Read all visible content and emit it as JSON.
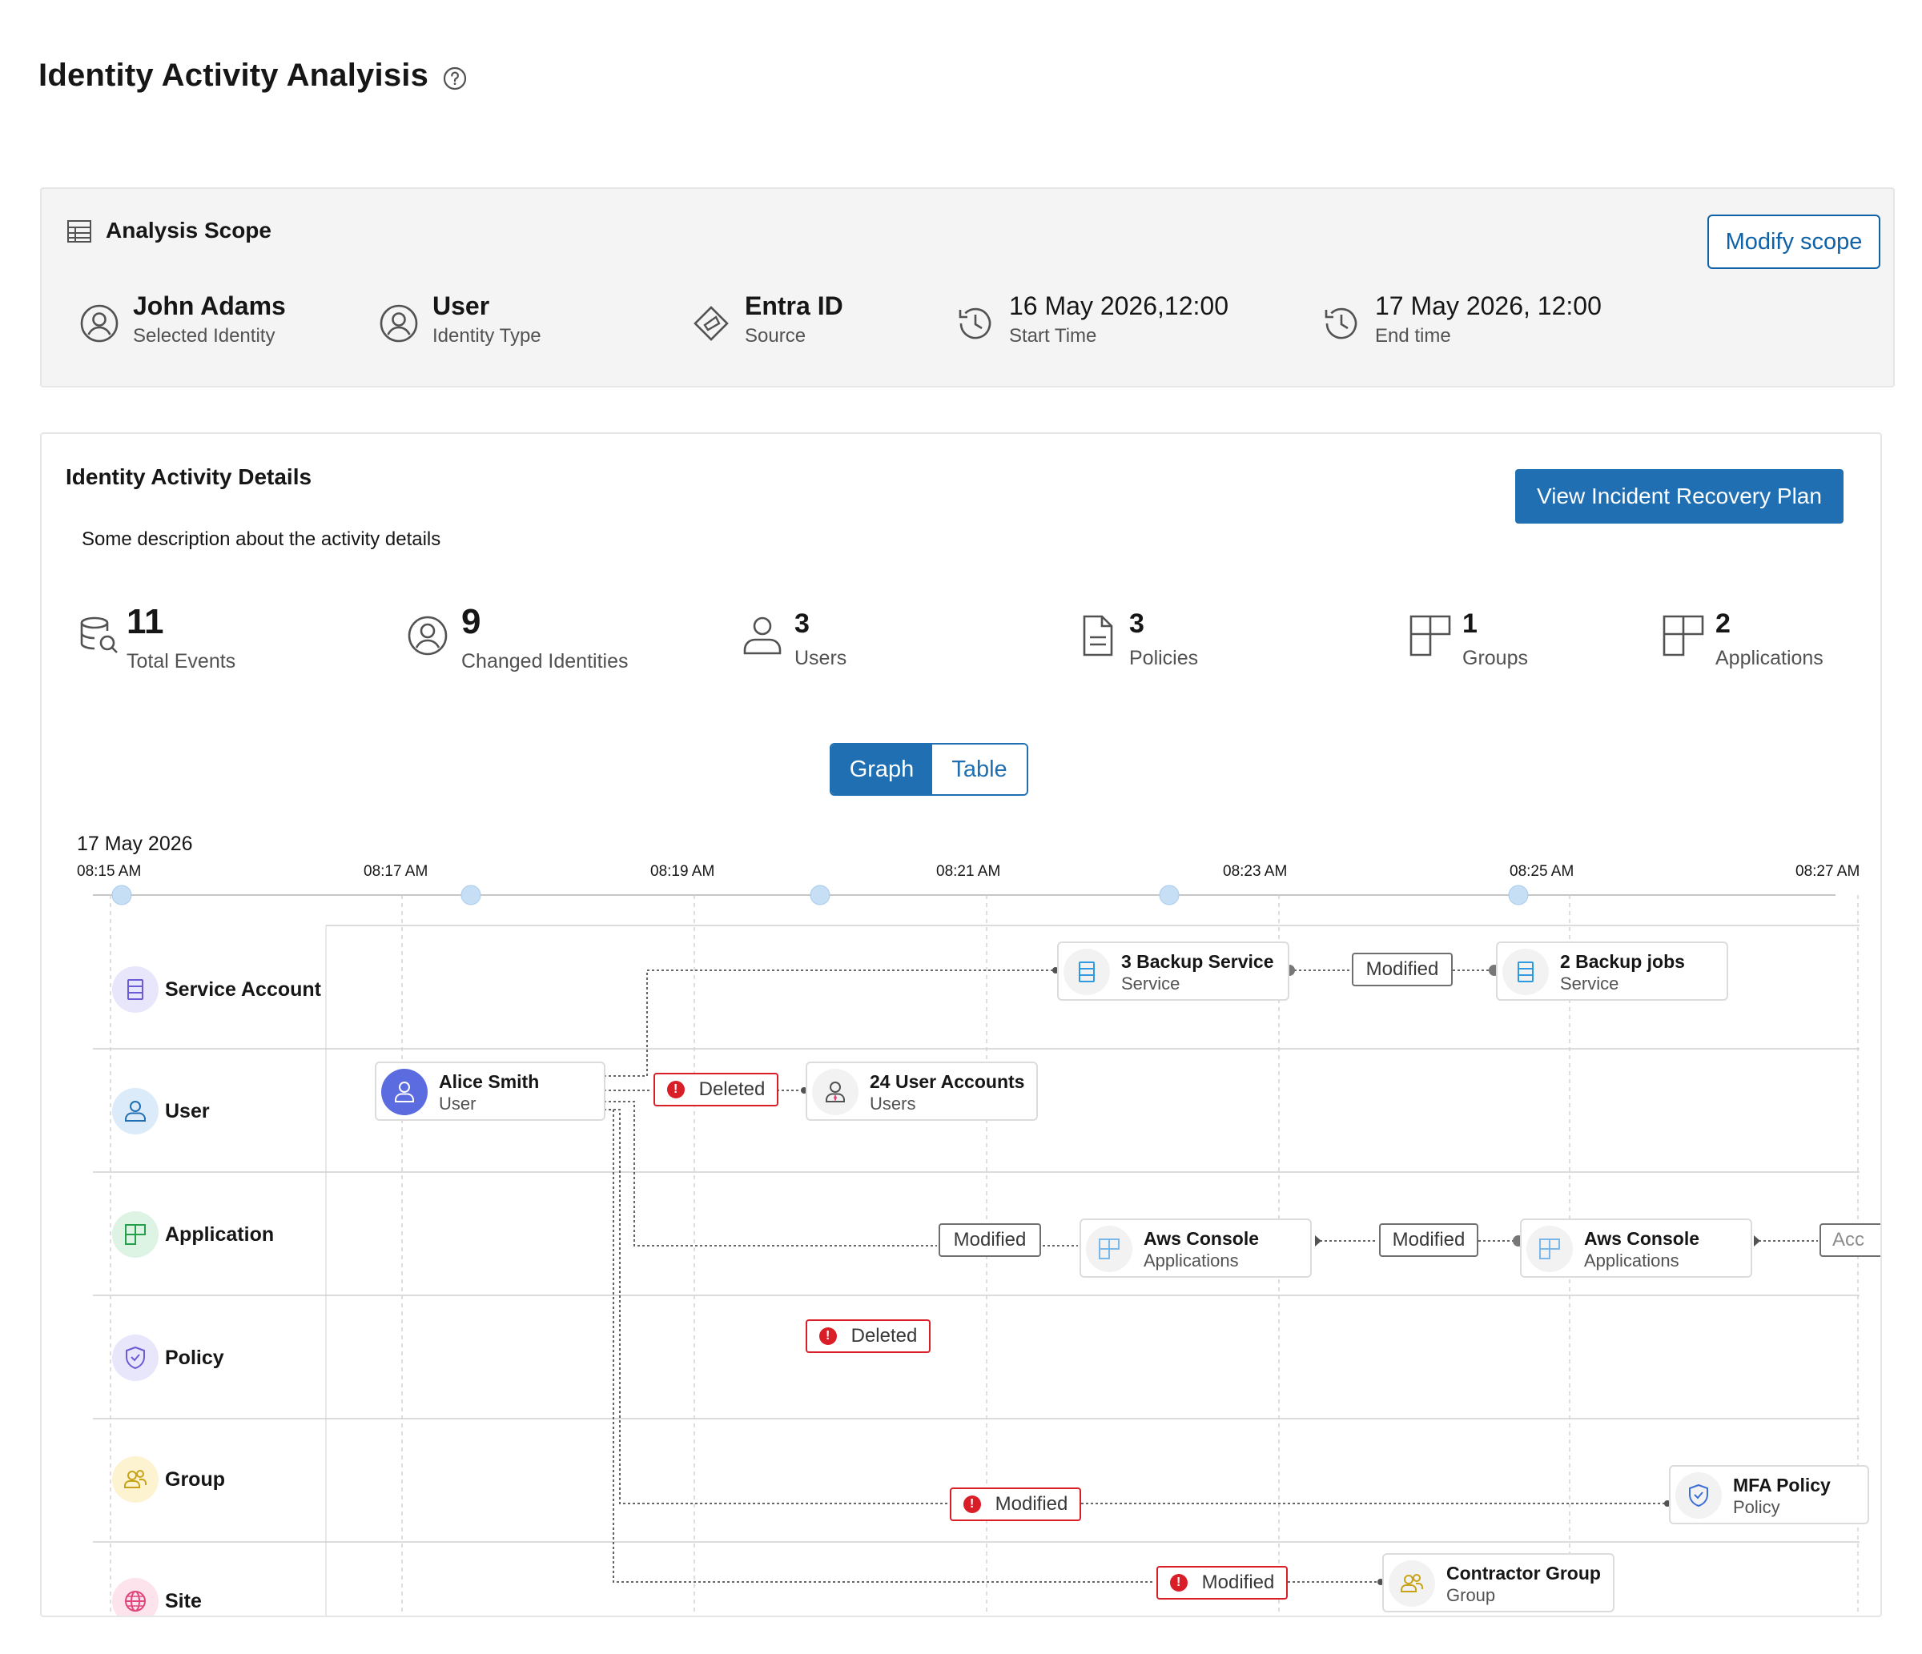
{
  "page": {
    "title": "Identity Activity Analyisis"
  },
  "scope": {
    "title": "Analysis Scope",
    "modify_label": "Modify scope",
    "items": [
      {
        "value": "John Adams",
        "label": "Selected Identity",
        "icon": "user-circle-icon"
      },
      {
        "value": "User",
        "label": "Identity Type",
        "icon": "user-circle-icon"
      },
      {
        "value": "Entra ID",
        "label": "Source",
        "icon": "entra-diamond-icon"
      },
      {
        "value": "16 May 2026,12:00",
        "label": "Start Time",
        "icon": "history-icon"
      },
      {
        "value": "17 May 2026, 12:00",
        "label": "End time",
        "icon": "history-icon"
      }
    ]
  },
  "details": {
    "title": "Identity Activity Details",
    "description": "Some description about the activity details",
    "incident_button": "View Incident Recovery Plan",
    "stats": [
      {
        "value": "11",
        "label": "Total Events",
        "icon": "database-search-icon"
      },
      {
        "value": "9",
        "label": "Changed Identities",
        "icon": "user-circle-icon"
      },
      {
        "value": "3",
        "label": "Users",
        "icon": "user-icon"
      },
      {
        "value": "3",
        "label": "Policies",
        "icon": "document-icon"
      },
      {
        "value": "1",
        "label": "Groups",
        "icon": "grid-icon"
      },
      {
        "value": "2",
        "label": "Applications",
        "icon": "grid-icon"
      }
    ],
    "view_toggle": {
      "graph": "Graph",
      "table": "Table",
      "selected": "Graph"
    }
  },
  "timeline": {
    "date": "17 May 2026",
    "times": [
      "08:15 AM",
      "08:17 AM",
      "08:19 AM",
      "08:21 AM",
      "08:23 AM",
      "08:25 AM",
      "08:27 AM"
    ]
  },
  "rows": [
    {
      "label": "Service Account",
      "icon": "server-icon",
      "color": "#e8e6fb"
    },
    {
      "label": "User",
      "icon": "user-icon",
      "color": "#dcebf9"
    },
    {
      "label": "Application",
      "icon": "grid-icon",
      "color": "#ddf3e4"
    },
    {
      "label": "Policy",
      "icon": "shield-icon",
      "color": "#e8e6fb"
    },
    {
      "label": "Group",
      "icon": "group-icon",
      "color": "#fdf3d0"
    },
    {
      "label": "Site",
      "icon": "globe-icon",
      "color": "#fde4ec"
    }
  ],
  "nodes": {
    "alice": {
      "title": "Alice Smith",
      "sub": "User"
    },
    "backup_service": {
      "title": "3 Backup Service",
      "sub": "Service"
    },
    "backup_jobs": {
      "title": "2 Backup jobs",
      "sub": "Service"
    },
    "user_accounts": {
      "title": "24 User Accounts",
      "sub": "Users"
    },
    "aws1": {
      "title": "Aws Console",
      "sub": "Applications"
    },
    "aws2": {
      "title": "Aws Console",
      "sub": "Applications"
    },
    "mfa": {
      "title": "MFA Policy",
      "sub": "Policy"
    },
    "contractor": {
      "title": "Contractor Group",
      "sub": "Group"
    }
  },
  "tags": {
    "svc_modified": "Modified",
    "user_deleted": "Deleted",
    "app_modified1": "Modified",
    "app_modified2": "Modified",
    "app_truncated": "Acc",
    "policy_deleted": "Deleted",
    "group_modified": "Modified",
    "site_modified": "Modified"
  },
  "colors": {
    "accent": "#1f6fb2",
    "error": "#da1e28"
  }
}
